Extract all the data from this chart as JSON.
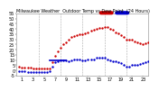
{
  "title": "Milwaukee Weather  Outdoor Temp vs Dew Point\n(24 Hours)",
  "background_color": "#ffffff",
  "grid_color": "#aaaaaa",
  "xlim": [
    0,
    24
  ],
  "ylim": [
    -5,
    55
  ],
  "ytick_labels": [
    "5",
    "1",
    "5",
    "1",
    "5",
    "1",
    "5",
    "1",
    "5",
    "1"
  ],
  "legend_temp_color": "#cc0000",
  "legend_dew_color": "#0000cc",
  "temp_points_x": [
    0.5,
    1.0,
    1.5,
    2.0,
    2.5,
    3.0,
    3.5,
    4.0,
    4.5,
    5.0,
    5.5,
    6.0,
    6.5,
    7.0,
    7.5,
    8.0,
    8.5,
    9.0,
    9.5,
    10.0,
    10.5,
    11.0,
    11.5,
    12.0,
    12.5,
    13.0,
    13.5,
    14.0,
    14.5,
    15.0,
    15.5,
    16.0,
    16.5,
    17.0,
    17.5,
    18.0,
    18.5,
    19.0,
    19.5,
    20.0,
    20.5,
    21.0,
    21.5,
    22.0,
    22.5,
    23.0,
    23.5,
    24.0
  ],
  "temp_points_y": [
    4,
    3,
    3,
    3,
    3,
    2,
    2,
    2,
    2,
    2,
    2,
    2,
    8,
    14,
    18,
    22,
    25,
    27,
    30,
    32,
    33,
    34,
    35,
    35,
    36,
    37,
    38,
    39,
    40,
    41,
    41,
    42,
    42,
    40,
    39,
    37,
    36,
    34,
    32,
    30,
    30,
    30,
    28,
    27,
    26,
    25,
    26,
    27
  ],
  "dew_points_x": [
    0.5,
    1.0,
    1.5,
    2.0,
    2.5,
    3.0,
    3.5,
    4.0,
    4.5,
    5.0,
    5.5,
    6.0,
    6.5,
    7.0,
    7.5,
    8.0,
    8.5,
    9.0,
    9.5,
    10.0,
    10.5,
    11.0,
    11.5,
    12.0,
    12.5,
    13.0,
    13.5,
    14.0,
    14.5,
    15.0,
    15.5,
    16.0,
    16.5,
    17.0,
    17.5,
    18.0,
    18.5,
    19.0,
    19.5,
    20.0,
    20.5,
    21.0,
    21.5,
    22.0,
    22.5,
    23.0,
    23.5,
    24.0
  ],
  "dew_points_y": [
    -1,
    -1,
    -1,
    -2,
    -2,
    -2,
    -2,
    -2,
    -2,
    -2,
    -2,
    -1,
    4,
    8,
    9,
    10,
    10,
    10,
    9,
    10,
    11,
    11,
    11,
    10,
    10,
    11,
    11,
    11,
    12,
    12,
    12,
    12,
    11,
    10,
    9,
    9,
    8,
    7,
    5,
    4,
    4,
    5,
    5,
    5,
    6,
    7,
    8,
    9
  ],
  "vline_positions": [
    4,
    8,
    12,
    16,
    20,
    24
  ],
  "xtick_positions": [
    1,
    3,
    5,
    7,
    9,
    11,
    13,
    15,
    17,
    19,
    21,
    23
  ],
  "dot_size": 3
}
